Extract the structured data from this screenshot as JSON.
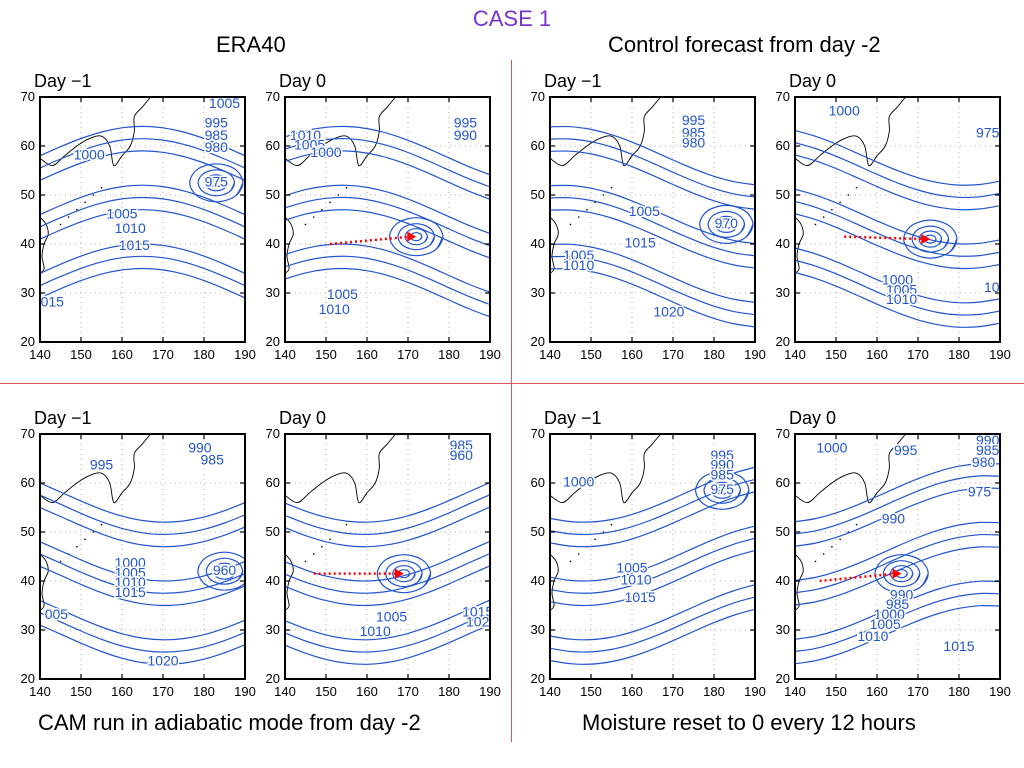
{
  "page": {
    "title": "CASE 1",
    "title_color": "#7733cc",
    "captions": {
      "top_left": "ERA40",
      "top_right": "Control forecast from day -2",
      "bottom_left": "CAM run in adiabatic mode from day -2",
      "bottom_right": "Moisture reset to 0 every 12 hours"
    },
    "colors": {
      "contour": "#2255cc",
      "arrow": "#ff0000",
      "divider": "#e05555",
      "coast": "#000000"
    }
  },
  "chart_data": [
    {
      "type": "contour",
      "group": "ERA40",
      "title": "Day −1",
      "xticks": [
        "140",
        "150",
        "160",
        "170",
        "180",
        "190"
      ],
      "yticks": [
        "20",
        "30",
        "40",
        "50",
        "60",
        "70"
      ],
      "xlim": [
        140,
        190
      ],
      "ylim": [
        20,
        70
      ],
      "labels": [
        {
          "text": "1005",
          "x": 185,
          "y": 68.5
        },
        {
          "text": "995",
          "x": 183,
          "y": 64.5
        },
        {
          "text": "985",
          "x": 183,
          "y": 62
        },
        {
          "text": "980",
          "x": 183,
          "y": 59.5
        },
        {
          "text": "1000",
          "x": 152,
          "y": 58
        },
        {
          "text": "975",
          "x": 183,
          "y": 52.5
        },
        {
          "text": "1005",
          "x": 160,
          "y": 46
        },
        {
          "text": "1010",
          "x": 162,
          "y": 43
        },
        {
          "text": "1015",
          "x": 163,
          "y": 39.5
        },
        {
          "text": "015",
          "x": 143,
          "y": 28
        }
      ]
    },
    {
      "type": "contour",
      "group": "ERA40",
      "title": "Day 0",
      "xticks": [
        "140",
        "150",
        "160",
        "170",
        "180",
        "190"
      ],
      "yticks": [
        "20",
        "30",
        "40",
        "50",
        "60",
        "70"
      ],
      "xlim": [
        140,
        190
      ],
      "ylim": [
        20,
        70
      ],
      "labels": [
        {
          "text": "995",
          "x": 184,
          "y": 64.5
        },
        {
          "text": "990",
          "x": 184,
          "y": 62
        },
        {
          "text": "1010",
          "x": 145,
          "y": 62
        },
        {
          "text": "1005",
          "x": 146,
          "y": 60
        },
        {
          "text": "1000",
          "x": 150,
          "y": 58.5
        },
        {
          "text": "1005",
          "x": 154,
          "y": 29.5
        },
        {
          "text": "1010",
          "x": 152,
          "y": 26.5
        }
      ],
      "arrow": {
        "from": [
          151,
          40
        ],
        "to": [
          172,
          41.5
        ]
      }
    },
    {
      "type": "contour",
      "group": "Control forecast from day -2",
      "title": "Day −1",
      "xticks": [
        "140",
        "150",
        "160",
        "170",
        "180",
        "190"
      ],
      "yticks": [
        "20",
        "30",
        "40",
        "50",
        "60",
        "70"
      ],
      "xlim": [
        140,
        190
      ],
      "ylim": [
        20,
        70
      ],
      "labels": [
        {
          "text": "995",
          "x": 175,
          "y": 65
        },
        {
          "text": "985",
          "x": 175,
          "y": 62.5
        },
        {
          "text": "980",
          "x": 175,
          "y": 60.5
        },
        {
          "text": "1005",
          "x": 163,
          "y": 46.5
        },
        {
          "text": "970",
          "x": 183,
          "y": 44
        },
        {
          "text": "1015",
          "x": 162,
          "y": 40
        },
        {
          "text": "1005",
          "x": 147,
          "y": 37.5
        },
        {
          "text": "1010",
          "x": 147,
          "y": 35.5
        },
        {
          "text": "1020",
          "x": 169,
          "y": 26
        }
      ]
    },
    {
      "type": "contour",
      "group": "Control forecast from day -2",
      "title": "Day 0",
      "xticks": [
        "140",
        "150",
        "160",
        "170",
        "180",
        "190"
      ],
      "yticks": [
        "20",
        "30",
        "40",
        "50",
        "60",
        "70"
      ],
      "xlim": [
        140,
        190
      ],
      "ylim": [
        20,
        70
      ],
      "labels": [
        {
          "text": "1000",
          "x": 152,
          "y": 67
        },
        {
          "text": "975",
          "x": 187,
          "y": 62.5
        },
        {
          "text": "1000",
          "x": 165,
          "y": 32.5
        },
        {
          "text": "1005",
          "x": 166,
          "y": 30.5
        },
        {
          "text": "1010",
          "x": 166,
          "y": 28.5
        },
        {
          "text": "10",
          "x": 188,
          "y": 31
        }
      ],
      "arrow": {
        "from": [
          152,
          41.5
        ],
        "to": [
          173,
          41
        ]
      }
    },
    {
      "type": "contour",
      "group": "CAM run in adiabatic mode from day -2",
      "title": "Day −1",
      "xticks": [
        "140",
        "150",
        "160",
        "170",
        "180",
        "190"
      ],
      "yticks": [
        "20",
        "30",
        "40",
        "50",
        "60",
        "70"
      ],
      "xlim": [
        140,
        190
      ],
      "ylim": [
        20,
        70
      ],
      "labels": [
        {
          "text": "990",
          "x": 179,
          "y": 67
        },
        {
          "text": "985",
          "x": 182,
          "y": 64.5
        },
        {
          "text": "995",
          "x": 155,
          "y": 63.5
        },
        {
          "text": "1000",
          "x": 162,
          "y": 43.5
        },
        {
          "text": "1005",
          "x": 162,
          "y": 41.5
        },
        {
          "text": "1010",
          "x": 162,
          "y": 39.5
        },
        {
          "text": "1015",
          "x": 162,
          "y": 37.5
        },
        {
          "text": "960",
          "x": 185,
          "y": 42
        },
        {
          "text": "005",
          "x": 144,
          "y": 33
        },
        {
          "text": "1020",
          "x": 170,
          "y": 23.5
        }
      ]
    },
    {
      "type": "contour",
      "group": "CAM run in adiabatic mode from day -2",
      "title": "Day 0",
      "xticks": [
        "140",
        "150",
        "160",
        "170",
        "180",
        "190"
      ],
      "yticks": [
        "20",
        "30",
        "40",
        "50",
        "60",
        "70"
      ],
      "xlim": [
        140,
        190
      ],
      "ylim": [
        20,
        70
      ],
      "labels": [
        {
          "text": "985",
          "x": 183,
          "y": 67.5
        },
        {
          "text": "960",
          "x": 183,
          "y": 65.5
        },
        {
          "text": "1005",
          "x": 166,
          "y": 32.5
        },
        {
          "text": "1010",
          "x": 162,
          "y": 29.5
        },
        {
          "text": "1015",
          "x": 187,
          "y": 33.5
        },
        {
          "text": "102",
          "x": 187,
          "y": 31.5
        }
      ],
      "arrow": {
        "from": [
          147,
          41.5
        ],
        "to": [
          169,
          41.5
        ]
      }
    },
    {
      "type": "contour",
      "group": "Moisture reset to 0 every 12 hours",
      "title": "Day −1",
      "xticks": [
        "140",
        "150",
        "160",
        "170",
        "180",
        "190"
      ],
      "yticks": [
        "20",
        "30",
        "40",
        "50",
        "60",
        "70"
      ],
      "xlim": [
        140,
        190
      ],
      "ylim": [
        20,
        70
      ],
      "labels": [
        {
          "text": "995",
          "x": 182,
          "y": 65.5
        },
        {
          "text": "990",
          "x": 182,
          "y": 63.5
        },
        {
          "text": "985",
          "x": 182,
          "y": 61.5
        },
        {
          "text": "975",
          "x": 182,
          "y": 58.5
        },
        {
          "text": "1000",
          "x": 147,
          "y": 60
        },
        {
          "text": "1005",
          "x": 160,
          "y": 42.5
        },
        {
          "text": "1010",
          "x": 161,
          "y": 40
        },
        {
          "text": "1015",
          "x": 162,
          "y": 36.5
        }
      ]
    },
    {
      "type": "contour",
      "group": "Moisture reset to 0 every 12 hours",
      "title": "Day 0",
      "xticks": [
        "140",
        "150",
        "160",
        "170",
        "180",
        "190"
      ],
      "yticks": [
        "20",
        "30",
        "40",
        "50",
        "60",
        "70"
      ],
      "xlim": [
        140,
        190
      ],
      "ylim": [
        20,
        70
      ],
      "labels": [
        {
          "text": "1000",
          "x": 149,
          "y": 67
        },
        {
          "text": "995",
          "x": 167,
          "y": 66.5
        },
        {
          "text": "990",
          "x": 187,
          "y": 68.5
        },
        {
          "text": "985",
          "x": 187,
          "y": 66.5
        },
        {
          "text": "980",
          "x": 186,
          "y": 64
        },
        {
          "text": "975",
          "x": 185,
          "y": 58
        },
        {
          "text": "990",
          "x": 164,
          "y": 52.5
        },
        {
          "text": "990",
          "x": 166,
          "y": 37
        },
        {
          "text": "985",
          "x": 165,
          "y": 35
        },
        {
          "text": "1000",
          "x": 163,
          "y": 33
        },
        {
          "text": "1005",
          "x": 162,
          "y": 31
        },
        {
          "text": "1010",
          "x": 159,
          "y": 28.5
        },
        {
          "text": "1015",
          "x": 180,
          "y": 26.5
        }
      ],
      "arrow": {
        "from": [
          146,
          40
        ],
        "to": [
          166,
          41.5
        ]
      }
    }
  ]
}
